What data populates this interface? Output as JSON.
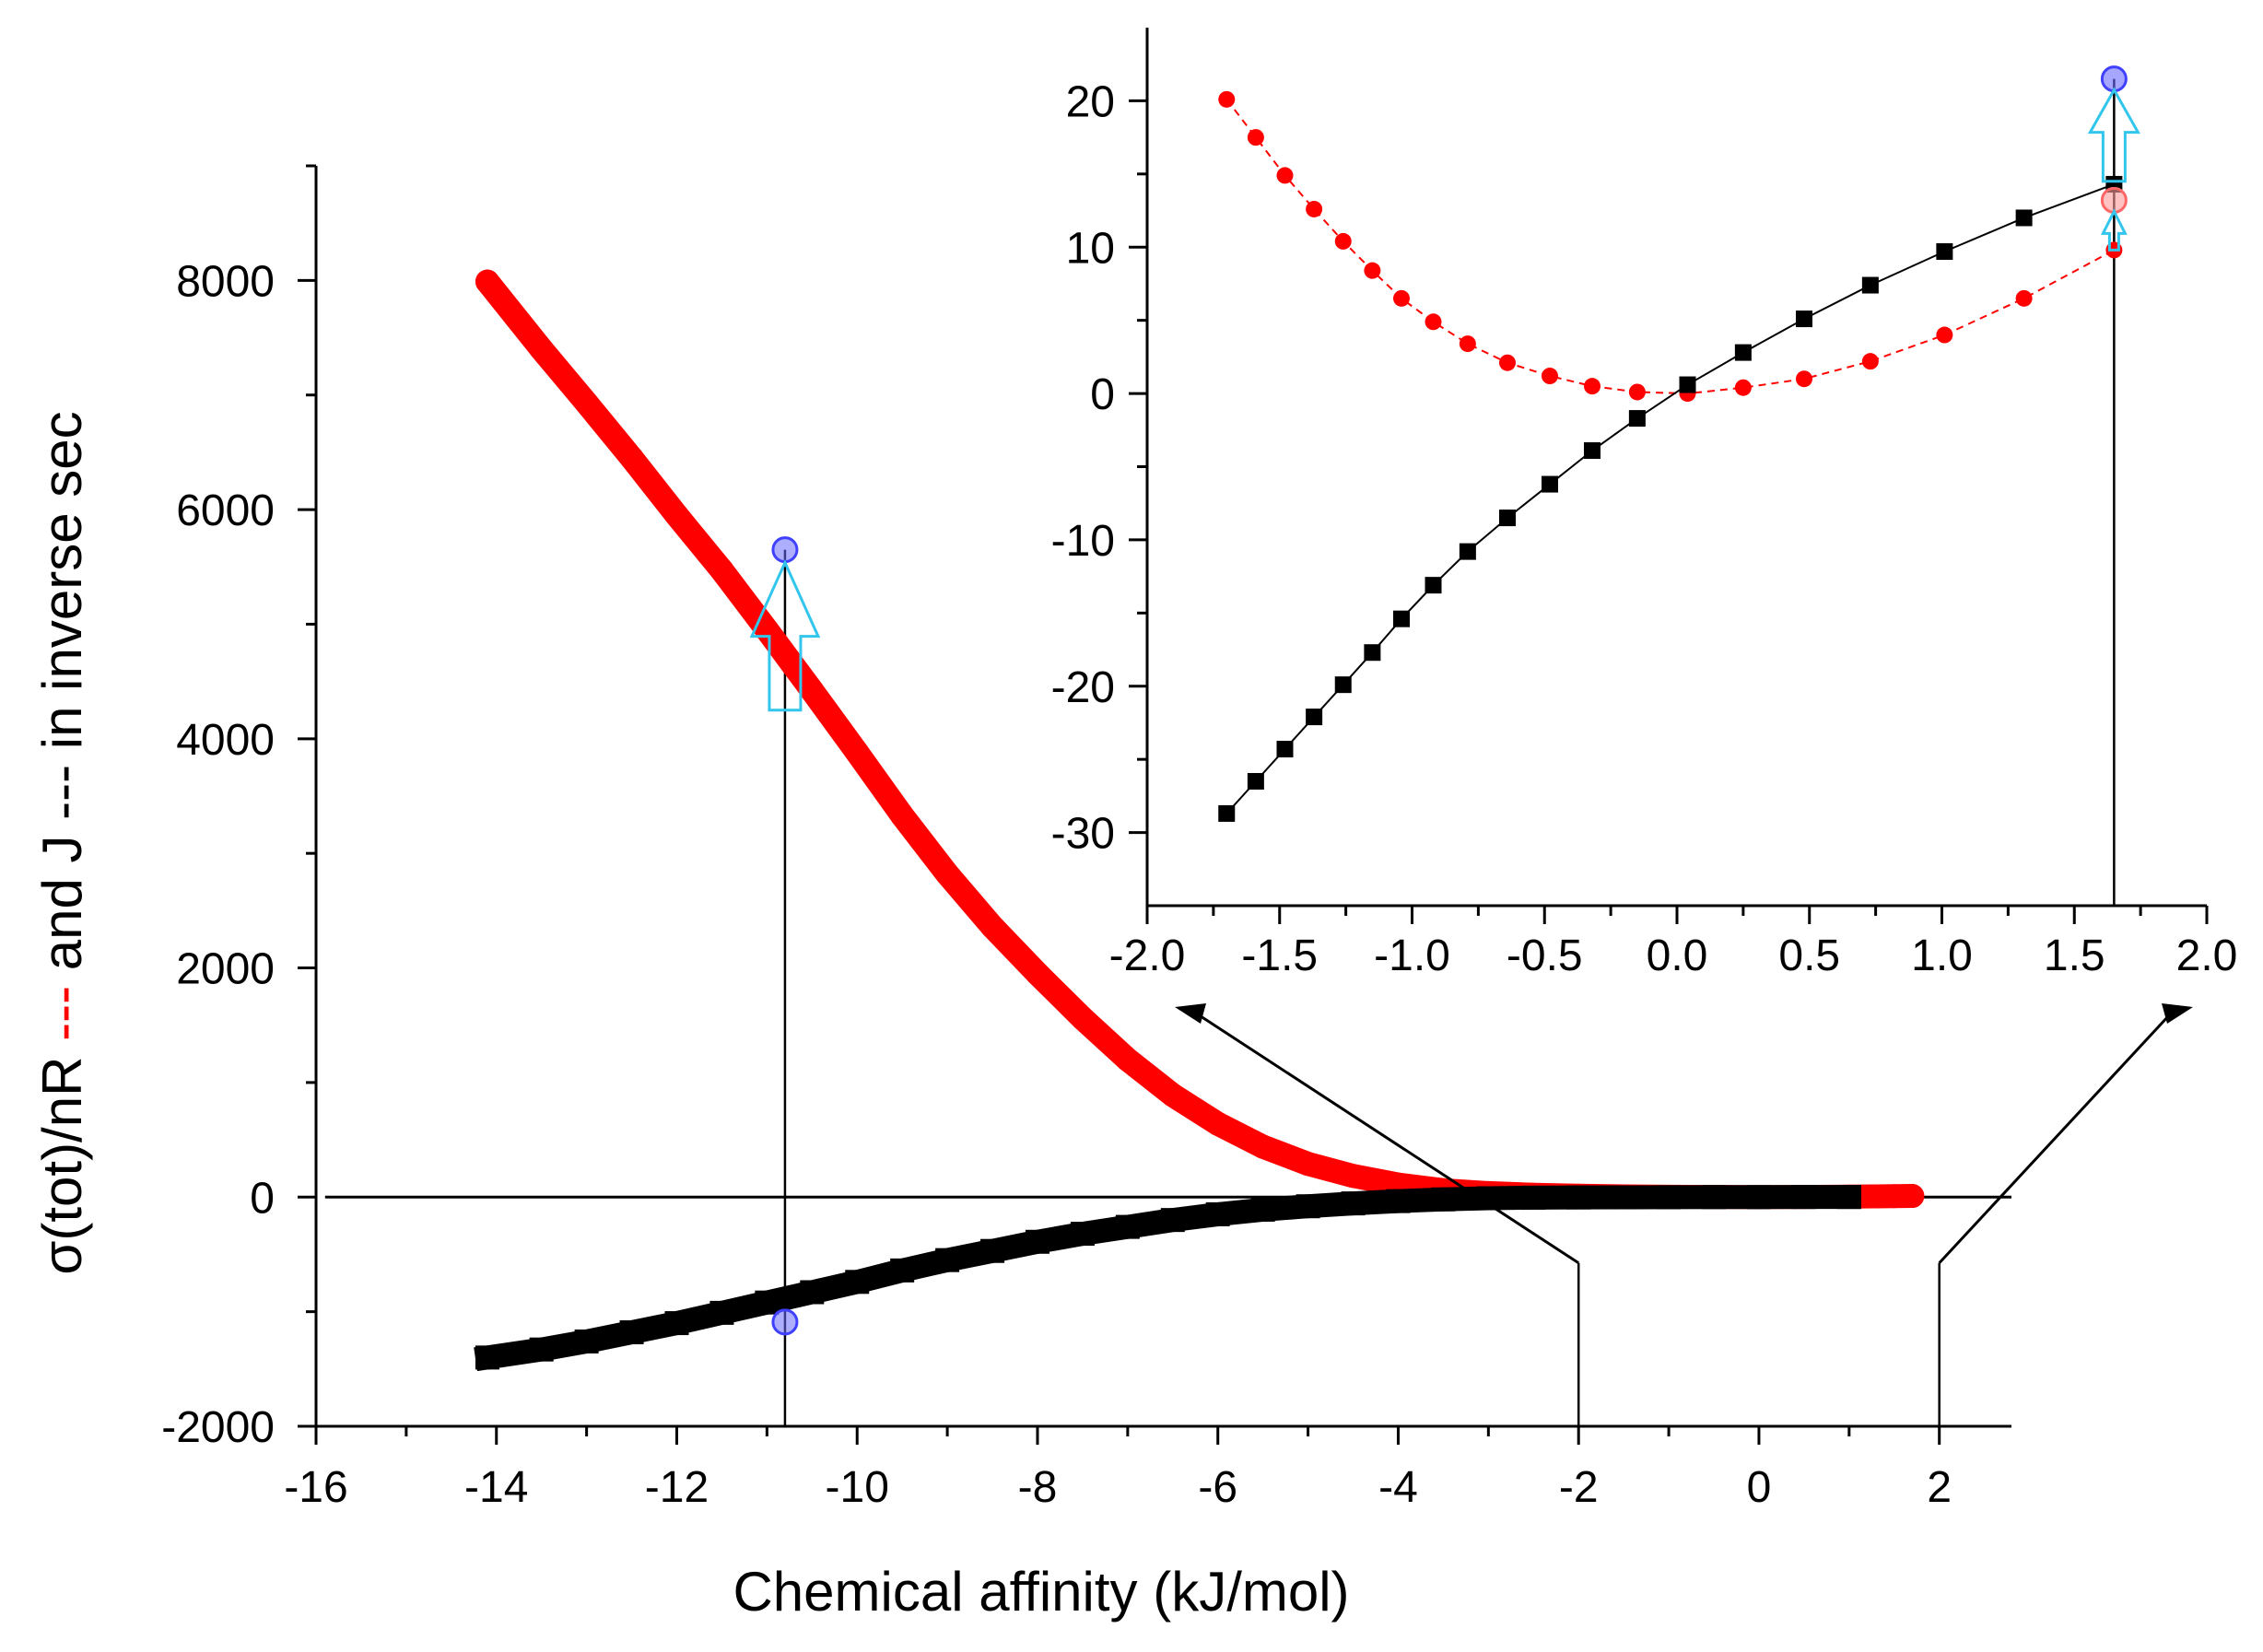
{
  "chart_data": [
    {
      "id": "main",
      "type": "scatter",
      "xlabel": "Chemical affinity (kJ/mol)",
      "ylabel_parts": [
        "σ(tot)/nR ",
        "---",
        " and J ",
        "---",
        " in inverse sec"
      ],
      "xlim": [
        -16,
        2.8
      ],
      "ylim": [
        -2000,
        9000
      ],
      "xticks": [
        -16,
        -14,
        -12,
        -10,
        -8,
        -6,
        -4,
        -2,
        0,
        2
      ],
      "yticks": [
        -2000,
        0,
        2000,
        4000,
        6000,
        8000
      ],
      "zero_line": true,
      "series": [
        {
          "color": "#ff0000",
          "marker": "circle",
          "x": [
            -14.1,
            -13.5,
            -13.0,
            -12.5,
            -12.0,
            -11.5,
            -11.0,
            -10.5,
            -10.0,
            -9.5,
            -9.0,
            -8.5,
            -8.0,
            -7.5,
            -7.0,
            -6.5,
            -6.0,
            -5.5,
            -5.0,
            -4.5,
            -4.0,
            -3.5,
            -3.0,
            -2.5,
            -2.0,
            -1.5,
            -1.0,
            -0.5,
            0.0,
            0.5,
            1.0,
            1.3,
            1.5,
            1.7
          ],
          "y": [
            7990,
            7400,
            6930,
            6450,
            5950,
            5470,
            4950,
            4420,
            3880,
            3330,
            2820,
            2360,
            1950,
            1560,
            1200,
            890,
            640,
            440,
            290,
            185,
            110,
            60,
            35,
            20,
            12,
            6,
            3,
            1,
            0,
            1,
            4,
            6,
            8,
            10
          ]
        },
        {
          "color": "#000000",
          "marker": "square",
          "x": [
            -14.1,
            -13.5,
            -13.0,
            -12.5,
            -12.0,
            -11.5,
            -11.0,
            -10.5,
            -10.0,
            -9.5,
            -9.0,
            -8.5,
            -8.0,
            -7.5,
            -7.0,
            -6.5,
            -6.0,
            -5.5,
            -5.0,
            -4.5,
            -4.0,
            -3.5,
            -3.0,
            -2.5,
            -2.0,
            -1.5,
            -1.0,
            -0.5,
            0.0,
            0.5,
            1.0
          ],
          "y": [
            -1400,
            -1330,
            -1260,
            -1180,
            -1100,
            -1010,
            -920,
            -830,
            -740,
            -640,
            -550,
            -470,
            -390,
            -320,
            -260,
            -200,
            -150,
            -110,
            -80,
            -55,
            -35,
            -20,
            -10,
            -5,
            -3,
            -2,
            -1,
            0,
            0,
            1,
            1
          ]
        }
      ],
      "highlights": [
        {
          "x": -10.8,
          "y": 5650,
          "color": "#6b6bff"
        },
        {
          "x": -10.8,
          "y": -1090,
          "color": "#6b6bff"
        }
      ],
      "arrow": {
        "x": -10.8,
        "y_from": 4250,
        "y_to": 5650,
        "color": "#33c6ec"
      },
      "guides": [
        {
          "x": -10.8,
          "y_from": -2000,
          "y_to": 5650
        },
        {
          "x": -2,
          "y_from": -2000,
          "y_to": -575
        },
        {
          "x": 2,
          "y_from": -2000,
          "y_to": -575
        }
      ]
    },
    {
      "id": "inset",
      "type": "line",
      "xlim": [
        -2.0,
        2.0
      ],
      "ylim": [
        -35,
        25
      ],
      "xticks": [
        -2.0,
        -1.5,
        -1.0,
        -0.5,
        0.0,
        0.5,
        1.0,
        1.5,
        2.0
      ],
      "xtick_labels": [
        "-2.0",
        "-1.5",
        "-1.0",
        "-0.5",
        "0.0",
        "0.5",
        "1.0",
        "1.5",
        "2.0"
      ],
      "yticks": [
        -30,
        -20,
        -10,
        0,
        10,
        20
      ],
      "yminor": [
        -25,
        -15,
        -5,
        5,
        15
      ],
      "series": [
        {
          "color": "#ff0000",
          "marker": "circle",
          "dash": true,
          "x": [
            -1.7,
            -1.59,
            -1.48,
            -1.37,
            -1.26,
            -1.15,
            -1.04,
            -0.92,
            -0.79,
            -0.64,
            -0.48,
            -0.32,
            -0.15,
            0.04,
            0.25,
            0.48,
            0.73,
            1.01,
            1.31,
            1.65
          ],
          "y": [
            20.1,
            17.5,
            14.9,
            12.6,
            10.4,
            8.4,
            6.5,
            4.9,
            3.4,
            2.1,
            1.2,
            0.5,
            0.1,
            0.0,
            0.4,
            1.0,
            2.2,
            4.0,
            6.5,
            9.8
          ]
        },
        {
          "color": "#000000",
          "marker": "square",
          "dash": false,
          "x": [
            -1.7,
            -1.59,
            -1.48,
            -1.37,
            -1.26,
            -1.15,
            -1.04,
            -0.92,
            -0.79,
            -0.64,
            -0.48,
            -0.32,
            -0.15,
            0.04,
            0.25,
            0.48,
            0.73,
            1.01,
            1.31,
            1.65
          ],
          "y": [
            -28.7,
            -26.5,
            -24.3,
            -22.1,
            -19.9,
            -17.7,
            -15.4,
            -13.1,
            -10.8,
            -8.5,
            -6.2,
            -3.9,
            -1.7,
            0.6,
            2.8,
            5.1,
            7.4,
            9.7,
            12.0,
            14.3
          ]
        }
      ],
      "highlights": [
        {
          "x": 1.65,
          "y": 21.5,
          "color": "#6b6bff"
        },
        {
          "x": 1.65,
          "y": 13.2,
          "color": "#ff9999"
        }
      ],
      "arrows": [
        {
          "x": 1.65,
          "y_from": 14.5,
          "y_to": 21.5,
          "color": "#33c6ec"
        },
        {
          "x": 1.65,
          "y_from": 9.8,
          "y_to": 13.2,
          "color": "#33c6ec"
        }
      ],
      "guide": {
        "x": 1.65,
        "y_from": -35,
        "y_to": 21.5
      }
    }
  ]
}
